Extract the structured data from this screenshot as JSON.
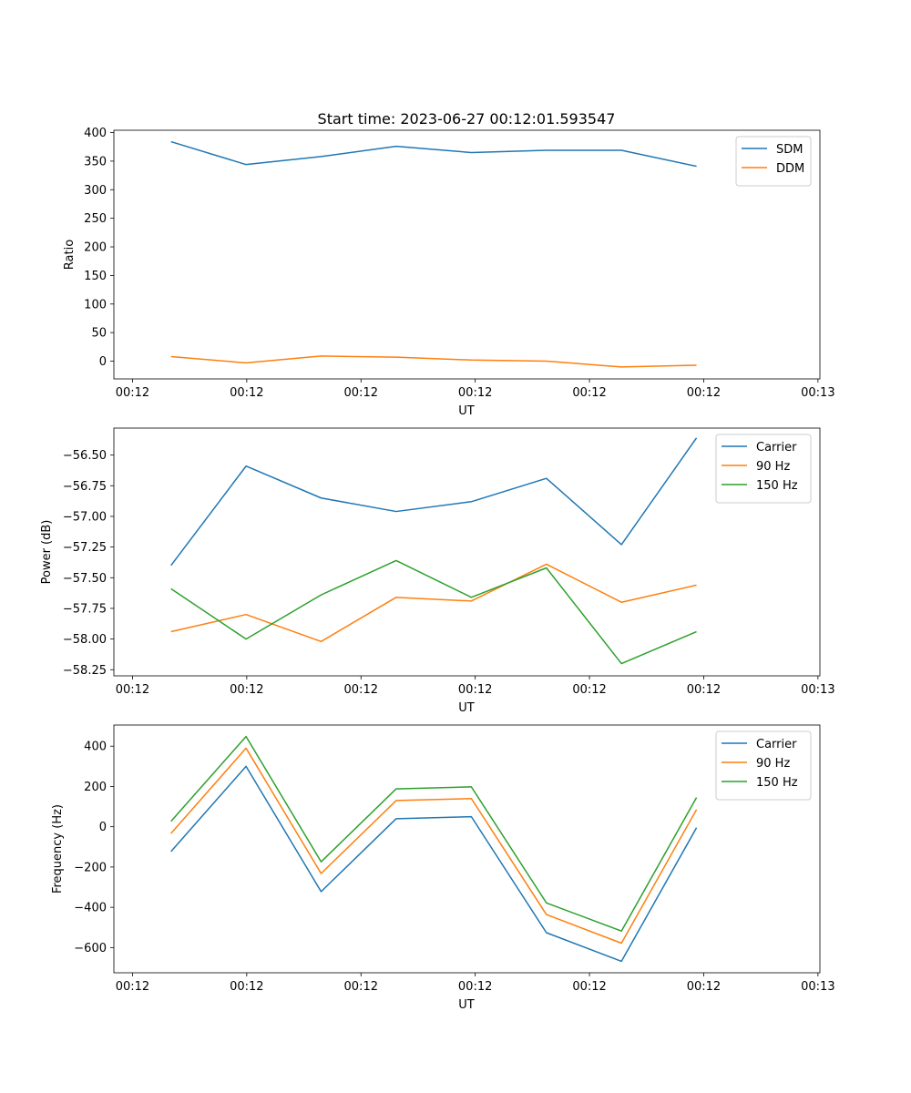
{
  "figure_title": "Start time: 2023-06-27 00:12:01.593547",
  "colors": {
    "series1": "#1f77b4",
    "series2": "#ff7f0e",
    "series3": "#2ca02c",
    "axis": "#000000"
  },
  "chart_data": [
    {
      "type": "line",
      "xlabel": "UT",
      "ylabel": "Ratio",
      "x": [
        0.5,
        1.157,
        1.814,
        2.471,
        3.129,
        3.786,
        4.443,
        5.1
      ],
      "xlim": [
        0,
        6.18
      ],
      "x_ticks": [
        0.163,
        1.163,
        2.163,
        3.163,
        4.163,
        5.163,
        6.163
      ],
      "x_tick_labels": [
        "00:12",
        "00:12",
        "00:12",
        "00:12",
        "00:12",
        "00:12",
        "00:13"
      ],
      "ylim": [
        -31,
        404
      ],
      "y_ticks": [
        0,
        50,
        100,
        150,
        200,
        250,
        300,
        350,
        400
      ],
      "y_tick_labels": [
        "0",
        "50",
        "100",
        "150",
        "200",
        "250",
        "300",
        "350",
        "400"
      ],
      "legend_position": "top-right",
      "series": [
        {
          "name": "SDM",
          "values": [
            384,
            344,
            358,
            376,
            365,
            369,
            369,
            341
          ]
        },
        {
          "name": "DDM",
          "values": [
            8,
            -3,
            9,
            7,
            2,
            0,
            -10,
            -7
          ]
        }
      ]
    },
    {
      "type": "line",
      "xlabel": "UT",
      "ylabel": "Power (dB)",
      "x": [
        0.5,
        1.157,
        1.814,
        2.471,
        3.129,
        3.786,
        4.443,
        5.1
      ],
      "xlim": [
        0,
        6.18
      ],
      "x_ticks": [
        0.163,
        1.163,
        2.163,
        3.163,
        4.163,
        5.163,
        6.163
      ],
      "x_tick_labels": [
        "00:12",
        "00:12",
        "00:12",
        "00:12",
        "00:12",
        "00:12",
        "00:13"
      ],
      "ylim": [
        -58.3,
        -56.28
      ],
      "y_ticks": [
        -58.25,
        -58.0,
        -57.75,
        -57.5,
        -57.25,
        -57.0,
        -56.75,
        -56.5
      ],
      "y_tick_labels": [
        "−58.25",
        "−58.00",
        "−57.75",
        "−57.50",
        "−57.25",
        "−57.00",
        "−56.75",
        "−56.50"
      ],
      "legend_position": "top-right",
      "series": [
        {
          "name": "Carrier",
          "values": [
            -57.4,
            -56.59,
            -56.85,
            -56.96,
            -56.88,
            -56.69,
            -57.23,
            -56.36
          ]
        },
        {
          "name": "90 Hz",
          "values": [
            -57.94,
            -57.8,
            -58.02,
            -57.66,
            -57.69,
            -57.39,
            -57.7,
            -57.56
          ]
        },
        {
          "name": "150 Hz",
          "values": [
            -57.59,
            -58.0,
            -57.64,
            -57.36,
            -57.66,
            -57.42,
            -58.2,
            -57.94
          ]
        }
      ]
    },
    {
      "type": "line",
      "xlabel": "UT",
      "ylabel": "Frequency (Hz)",
      "x": [
        0.5,
        1.157,
        1.814,
        2.471,
        3.129,
        3.786,
        4.443,
        5.1
      ],
      "xlim": [
        0,
        6.18
      ],
      "x_ticks": [
        0.163,
        1.163,
        2.163,
        3.163,
        4.163,
        5.163,
        6.163
      ],
      "x_tick_labels": [
        "00:12",
        "00:12",
        "00:12",
        "00:12",
        "00:12",
        "00:12",
        "00:13"
      ],
      "ylim": [
        -725,
        505
      ],
      "y_ticks": [
        -600,
        -400,
        -200,
        0,
        200,
        400
      ],
      "y_tick_labels": [
        "−600",
        "−400",
        "−200",
        "0",
        "200",
        "400"
      ],
      "legend_position": "top-right",
      "series": [
        {
          "name": "Carrier",
          "values": [
            -123,
            300,
            -322,
            40,
            50,
            -526,
            -668,
            -5
          ]
        },
        {
          "name": "90 Hz",
          "values": [
            -33,
            390,
            -232,
            130,
            140,
            -436,
            -578,
            85
          ]
        },
        {
          "name": "150 Hz",
          "values": [
            27,
            448,
            -174,
            188,
            198,
            -378,
            -518,
            145
          ]
        }
      ]
    }
  ]
}
